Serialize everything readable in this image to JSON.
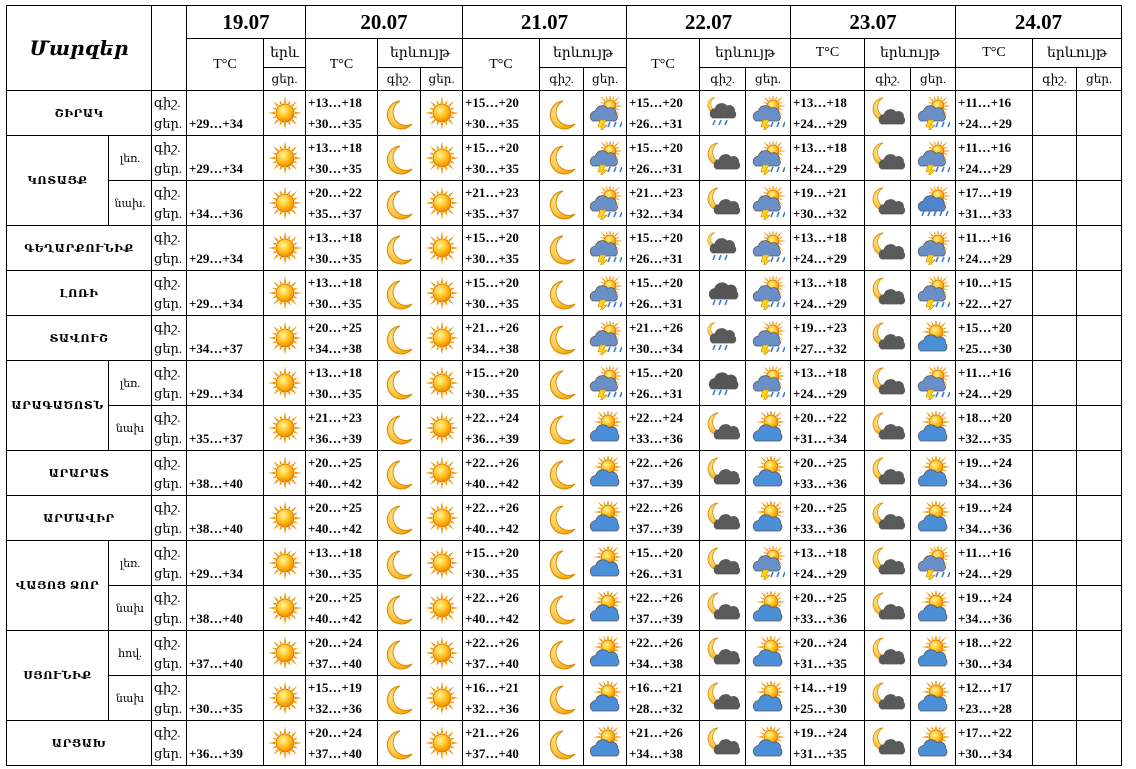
{
  "header": {
    "title": "Մարզեր",
    "temp_label": "T°C",
    "phen_label": "երևույթ",
    "phen_label_short": "երև",
    "night": "գիշ.",
    "day": "ցեր.",
    "dates": [
      "19.07",
      "20.07",
      "21.07",
      "22.07",
      "23.07",
      "24.07"
    ]
  },
  "rows": [
    {
      "region": "ՇԻՐԱԿ",
      "sub": "",
      "temps": {
        "d19": "+29…+34",
        "d20": [
          "+13…+18",
          "+30…+35"
        ],
        "d21": [
          "+15…+20",
          "+30…+35"
        ],
        "d22": [
          "+15…+20",
          "+26…+31"
        ],
        "d23": [
          "+13…+18",
          "+24…+29"
        ],
        "d24": [
          "+11…+16",
          "+24…+29"
        ]
      },
      "icons": [
        "sun",
        "moon",
        "sun",
        "moon",
        "storm",
        "cloud-moon-rain",
        "storm",
        "moon-cloud",
        "storm"
      ]
    },
    {
      "region": "ԿՈՏԱՅՔ",
      "sub": "լեռ.",
      "temps": {
        "d19": "+29…+34",
        "d20": [
          "+13…+18",
          "+30…+35"
        ],
        "d21": [
          "+15…+20",
          "+30…+35"
        ],
        "d22": [
          "+15…+20",
          "+26…+31"
        ],
        "d23": [
          "+13…+18",
          "+24…+29"
        ],
        "d24": [
          "+11…+16",
          "+24…+29"
        ]
      },
      "icons": [
        "sun",
        "moon",
        "sun",
        "moon",
        "storm",
        "moon-cloud",
        "storm",
        "moon-cloud",
        "storm"
      ]
    },
    {
      "region": "",
      "sub": "նախ.",
      "temps": {
        "d19": "+34…+36",
        "d20": [
          "+20…+22",
          "+35…+37"
        ],
        "d21": [
          "+21…+23",
          "+35…+37"
        ],
        "d22": [
          "+21…+23",
          "+32…+34"
        ],
        "d23": [
          "+19…+21",
          "+30…+32"
        ],
        "d24": [
          "+17…+19",
          "+31…+33"
        ]
      },
      "icons": [
        "sun",
        "moon",
        "sun",
        "moon",
        "storm",
        "moon-cloud",
        "storm",
        "moon-cloud",
        "rain"
      ]
    },
    {
      "region": "ԳԵՂԱՐՔՈՒՆԻՔ",
      "sub": "",
      "temps": {
        "d19": "+29…+34",
        "d20": [
          "+13…+18",
          "+30…+35"
        ],
        "d21": [
          "+15…+20",
          "+30…+35"
        ],
        "d22": [
          "+15…+20",
          "+26…+31"
        ],
        "d23": [
          "+13…+18",
          "+24…+29"
        ],
        "d24": [
          "+11…+16",
          "+24…+29"
        ]
      },
      "icons": [
        "sun",
        "moon",
        "sun",
        "moon",
        "storm",
        "cloud-moon-rain",
        "storm",
        "moon-cloud",
        "storm"
      ]
    },
    {
      "region": "ԼՈՌԻ",
      "sub": "",
      "temps": {
        "d19": "+29…+34",
        "d20": [
          "+13…+18",
          "+30…+35"
        ],
        "d21": [
          "+15…+20",
          "+30…+35"
        ],
        "d22": [
          "+15…+20",
          "+26…+31"
        ],
        "d23": [
          "+13…+18",
          "+24…+29"
        ],
        "d24": [
          "+10…+15",
          "+22…+27"
        ]
      },
      "icons": [
        "sun",
        "moon",
        "sun",
        "moon",
        "storm",
        "cloud-rain",
        "storm",
        "moon-cloud",
        "storm"
      ]
    },
    {
      "region": "ՏԱՎՈՒՇ",
      "sub": "",
      "temps": {
        "d19": "+34…+37",
        "d20": [
          "+20…+25",
          "+34…+38"
        ],
        "d21": [
          "+21…+26",
          "+34…+38"
        ],
        "d22": [
          "+21…+26",
          "+30…+34"
        ],
        "d23": [
          "+19…+23",
          "+27…+32"
        ],
        "d24": [
          "+15…+20",
          "+25…+30"
        ]
      },
      "icons": [
        "sun",
        "moon",
        "sun",
        "moon",
        "storm",
        "cloud-moon-rain",
        "storm",
        "moon-cloud",
        "sun-cloud"
      ]
    },
    {
      "region": "ԱՐԱԳԱԾՈՏՆ",
      "sub": "լեռ.",
      "temps": {
        "d19": "+29…+34",
        "d20": [
          "+13…+18",
          "+30…+35"
        ],
        "d21": [
          "+15…+20",
          "+30…+35"
        ],
        "d22": [
          "+15…+20",
          "+26…+31"
        ],
        "d23": [
          "+13…+18",
          "+24…+29"
        ],
        "d24": [
          "+11…+16",
          "+24…+29"
        ]
      },
      "icons": [
        "sun",
        "moon",
        "sun",
        "moon",
        "storm",
        "cloud-rain",
        "storm",
        "moon-cloud",
        "storm"
      ]
    },
    {
      "region": "",
      "sub": "նախ",
      "temps": {
        "d19": "+35…+37",
        "d20": [
          "+21…+23",
          "+36…+39"
        ],
        "d21": [
          "+22…+24",
          "+36…+39"
        ],
        "d22": [
          "+22…+24",
          "+33…+36"
        ],
        "d23": [
          "+20…+22",
          "+31…+34"
        ],
        "d24": [
          "+18…+20",
          "+32…+35"
        ]
      },
      "icons": [
        "sun",
        "moon",
        "sun",
        "moon",
        "sun-cloud",
        "moon-cloud",
        "sun-cloud",
        "moon-cloud",
        "sun-cloud"
      ]
    },
    {
      "region": "ԱՐԱՐԱՏ",
      "sub": "",
      "temps": {
        "d19": "+38…+40",
        "d20": [
          "+20…+25",
          "+40…+42"
        ],
        "d21": [
          "+22…+26",
          "+40…+42"
        ],
        "d22": [
          "+22…+26",
          "+37…+39"
        ],
        "d23": [
          "+20…+25",
          "+33…+36"
        ],
        "d24": [
          "+19…+24",
          "+34…+36"
        ]
      },
      "icons": [
        "sun",
        "moon",
        "sun",
        "moon",
        "sun-cloud",
        "moon-cloud",
        "sun-cloud",
        "moon-cloud",
        "sun-cloud"
      ]
    },
    {
      "region": "ԱՐՄԱՎԻՐ",
      "sub": "",
      "temps": {
        "d19": "+38…+40",
        "d20": [
          "+20…+25",
          "+40…+42"
        ],
        "d21": [
          "+22…+26",
          "+40…+42"
        ],
        "d22": [
          "+22…+26",
          "+37…+39"
        ],
        "d23": [
          "+20…+25",
          "+33…+36"
        ],
        "d24": [
          "+19…+24",
          "+34…+36"
        ]
      },
      "icons": [
        "sun",
        "moon",
        "sun",
        "moon",
        "sun-cloud",
        "moon-cloud",
        "sun-cloud",
        "moon-cloud",
        "sun-cloud"
      ]
    },
    {
      "region": "ՎԱՅՈՑ ՁՈՐ",
      "sub": "լեռ.",
      "temps": {
        "d19": "+29…+34",
        "d20": [
          "+13…+18",
          "+30…+35"
        ],
        "d21": [
          "+15…+20",
          "+30…+35"
        ],
        "d22": [
          "+15…+20",
          "+26…+31"
        ],
        "d23": [
          "+13…+18",
          "+24…+29"
        ],
        "d24": [
          "+11…+16",
          "+24…+29"
        ]
      },
      "icons": [
        "sun",
        "moon",
        "sun",
        "moon",
        "sun-cloud",
        "moon-cloud",
        "storm",
        "moon-cloud",
        "storm"
      ]
    },
    {
      "region": "",
      "sub": "նախ",
      "temps": {
        "d19": "+38…+40",
        "d20": [
          "+20…+25",
          "+40…+42"
        ],
        "d21": [
          "+22…+26",
          "+40…+42"
        ],
        "d22": [
          "+22…+26",
          "+37…+39"
        ],
        "d23": [
          "+20…+25",
          "+33…+36"
        ],
        "d24": [
          "+19…+24",
          "+34…+36"
        ]
      },
      "icons": [
        "sun",
        "moon",
        "sun",
        "moon",
        "sun-cloud",
        "moon-cloud",
        "sun-cloud",
        "moon-cloud",
        "sun-cloud"
      ]
    },
    {
      "region": "ՍՅՈՒՆԻՔ",
      "sub": "հով.",
      "temps": {
        "d19": "+37…+40",
        "d20": [
          "+20…+24",
          "+37…+40"
        ],
        "d21": [
          "+22…+26",
          "+37…+40"
        ],
        "d22": [
          "+22…+26",
          "+34…+38"
        ],
        "d23": [
          "+20…+24",
          "+31…+35"
        ],
        "d24": [
          "+18…+22",
          "+30…+34"
        ]
      },
      "icons": [
        "sun",
        "moon",
        "sun",
        "moon",
        "sun-cloud",
        "moon-cloud",
        "sun-cloud",
        "moon-cloud",
        "sun-cloud"
      ]
    },
    {
      "region": "",
      "sub": "նախ",
      "temps": {
        "d19": "+30…+35",
        "d20": [
          "+15…+19",
          "+32…+36"
        ],
        "d21": [
          "+16…+21",
          "+32…+36"
        ],
        "d22": [
          "+16…+21",
          "+28…+32"
        ],
        "d23": [
          "+14…+19",
          "+25…+30"
        ],
        "d24": [
          "+12…+17",
          "+23…+28"
        ]
      },
      "icons": [
        "sun",
        "moon",
        "sun",
        "moon",
        "sun-cloud",
        "moon-cloud",
        "sun-cloud",
        "moon-cloud",
        "sun-cloud"
      ]
    },
    {
      "region": "ԱՐՑԱԽ",
      "sub": "",
      "temps": {
        "d19": "+36…+39",
        "d20": [
          "+20…+24",
          "+37…+40"
        ],
        "d21": [
          "+21…+26",
          "+37…+40"
        ],
        "d22": [
          "+21…+26",
          "+34…+38"
        ],
        "d23": [
          "+19…+24",
          "+31…+35"
        ],
        "d24": [
          "+17…+22",
          "+30…+34"
        ]
      },
      "icons": [
        "sun",
        "moon",
        "sun",
        "moon",
        "sun-cloud",
        "moon-cloud",
        "sun-cloud",
        "moon-cloud",
        "sun-cloud"
      ]
    }
  ]
}
